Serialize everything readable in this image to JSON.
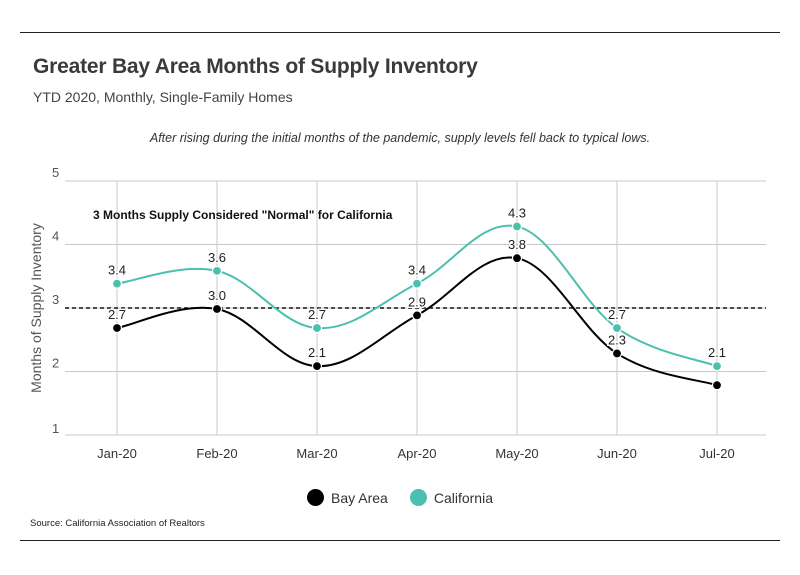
{
  "header": {
    "title": "Greater Bay Area Months of Supply Inventory",
    "subtitle": "YTD 2020, Monthly, Single-Family Homes",
    "annotation": "After rising during the initial months of the pandemic, supply levels fell back to typical lows."
  },
  "footer": {
    "source": "Source:  California Association of Realtors"
  },
  "chart_data": {
    "type": "line",
    "title": "Greater Bay Area Months of Supply Inventory",
    "subtitle": "YTD 2020, Monthly, Single-Family Homes",
    "xlabel": "",
    "ylabel": "Months of Supply Inventory",
    "categories": [
      "Jan-20",
      "Feb-20",
      "Mar-20",
      "Apr-20",
      "May-20",
      "Jun-20",
      "Jul-20"
    ],
    "ylim": [
      1,
      5
    ],
    "yticks": [
      1,
      2,
      3,
      4,
      5
    ],
    "grid": true,
    "legend_position": "bottom",
    "reference_line": {
      "value": 3,
      "label": "3 Months Supply Considered \"Normal\" for California"
    },
    "series": [
      {
        "name": "Bay Area",
        "color": "#000000",
        "values": [
          2.7,
          3.0,
          2.1,
          2.9,
          3.8,
          2.3,
          1.8
        ],
        "labels": [
          "2.7",
          "3.0",
          "2.1",
          "2.9",
          "3.8",
          "2.3",
          ""
        ]
      },
      {
        "name": "California",
        "color": "#4dbfae",
        "values": [
          3.4,
          3.6,
          2.7,
          3.4,
          4.3,
          2.7,
          2.1
        ],
        "labels": [
          "3.4",
          "3.6",
          "2.7",
          "3.4",
          "4.3",
          "2.7",
          "2.1"
        ]
      }
    ]
  }
}
